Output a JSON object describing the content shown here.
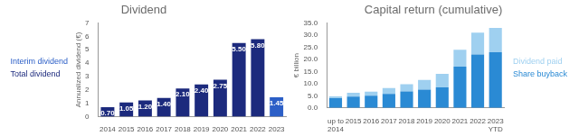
{
  "chart_data": [
    {
      "type": "bar",
      "title": "Dividend",
      "ylabel": "Annualized dividend (€)",
      "categories": [
        "2014",
        "2015",
        "2016",
        "2017",
        "2018",
        "2019",
        "2020",
        "2021",
        "2022",
        "2023"
      ],
      "series": [
        {
          "name": "Total dividend",
          "color": "#1c2a7d",
          "values": [
            0.7,
            1.05,
            1.2,
            1.4,
            2.1,
            2.4,
            2.75,
            5.5,
            5.8,
            null
          ],
          "value_labels": [
            "0.70",
            "1.05",
            "1.20",
            "1.40",
            "2.10",
            "2.40",
            "2.75",
            "5.50",
            "5.80",
            null
          ]
        },
        {
          "name": "Interim dividend",
          "color": "#2c5fc7",
          "values": [
            null,
            null,
            null,
            null,
            null,
            null,
            null,
            null,
            null,
            1.45
          ],
          "value_labels": [
            null,
            null,
            null,
            null,
            null,
            null,
            null,
            null,
            null,
            "1.45"
          ]
        }
      ],
      "ylim": [
        0,
        7
      ],
      "yticks": [
        0,
        1,
        2,
        3,
        4,
        5,
        6,
        7
      ],
      "stacked": true,
      "data_labels": true,
      "legend": "left",
      "grid": false
    },
    {
      "type": "bar",
      "title": "Capital return (cumulative)",
      "ylabel": "€ billion",
      "categories": [
        "up to 2014",
        "2015",
        "2016",
        "2017",
        "2018",
        "2019",
        "2020",
        "2021",
        "2022",
        "2023 YTD"
      ],
      "series": [
        {
          "name": "Share buyback",
          "color": "#2a8ad4",
          "values": [
            4.0,
            4.7,
            5.0,
            5.8,
            6.8,
            7.5,
            8.5,
            17.0,
            22.0,
            23.0
          ]
        },
        {
          "name": "Dividend paid",
          "color": "#9fd0f0",
          "values": [
            0.8,
            1.5,
            1.7,
            2.4,
            3.0,
            4.0,
            5.5,
            7.0,
            9.0,
            10.0
          ]
        }
      ],
      "ylim": [
        0,
        35
      ],
      "yticks": [
        {
          "value": 0,
          "label": "0.0"
        },
        {
          "value": 5,
          "label": "5.0"
        },
        {
          "value": 10,
          "label": "10.0"
        },
        {
          "value": 15,
          "label": "15.0"
        },
        {
          "value": 20,
          "label": "20.0"
        },
        {
          "value": 25,
          "label": "25.0"
        },
        {
          "value": 30,
          "label": "30.0"
        },
        {
          "value": 35,
          "label": "35.0"
        }
      ],
      "stacked": true,
      "data_labels": false,
      "legend": "right",
      "grid": false
    }
  ]
}
